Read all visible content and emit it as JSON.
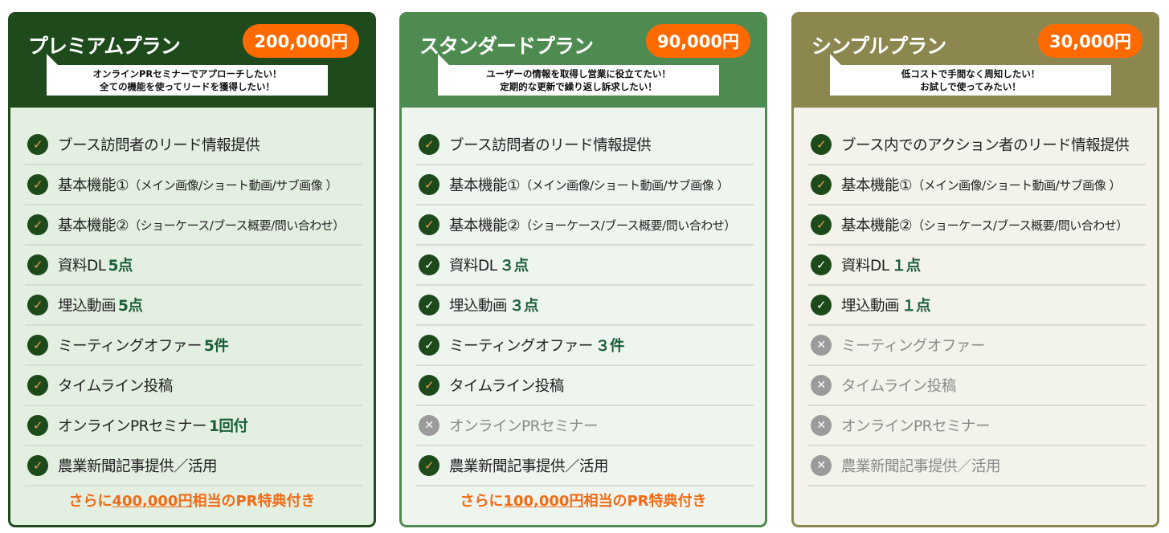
{
  "plans": [
    {
      "title": "プレミアムプラン",
      "price": "200,000円",
      "bubble_line1": "オンラインPRセミナーでアプローチしたい！",
      "bubble_line2": "全ての機能を使ってリードを獲得したい！",
      "header_color": "#1f4a1c",
      "features": [
        {
          "text": "ブース訪問者のリード情報提供",
          "note": "",
          "emph": "",
          "icon": "orange"
        },
        {
          "text": "基本機能①",
          "note": "（メイン画像/ショート動画/サブ画像 ）",
          "emph": "",
          "icon": "orange"
        },
        {
          "text": "基本機能②",
          "note": "（ショーケース/ブース概要/問い合わせ）",
          "emph": "",
          "icon": "orange"
        },
        {
          "text": "資料DL",
          "note": "",
          "emph": "5点",
          "icon": "orange"
        },
        {
          "text": "埋込動画",
          "note": "",
          "emph": "5点",
          "icon": "orange"
        },
        {
          "text": "ミーティングオファー",
          "note": "",
          "emph": "5件",
          "icon": "orange"
        },
        {
          "text": "タイムライン投稿",
          "note": "",
          "emph": "",
          "icon": "orange"
        },
        {
          "text": "オンラインPRセミナー",
          "note": "",
          "emph": "1回付",
          "icon": "orange"
        },
        {
          "text": "農業新聞記事提供／活用",
          "note": "",
          "emph": "",
          "icon": "orange"
        }
      ],
      "footer_pre": "さらに",
      "footer_amount": "400,000円",
      "footer_post": "相当のPR特典付き"
    },
    {
      "title": "スタンダードプラン",
      "price": "90,000円",
      "bubble_line1": "ユーザーの情報を取得し営業に役立てたい！",
      "bubble_line2": "定期的な更新で繰り返し訴求したい！",
      "header_color": "#4e8b50",
      "features": [
        {
          "text": "ブース訪問者のリード情報提供",
          "note": "",
          "emph": "",
          "icon": "orange"
        },
        {
          "text": "基本機能①",
          "note": "（メイン画像/ショート動画/サブ画像 ）",
          "emph": "",
          "icon": "orange"
        },
        {
          "text": "基本機能②",
          "note": "（ショーケース/ブース概要/問い合わせ）",
          "emph": "",
          "icon": "orange"
        },
        {
          "text": "資料DL",
          "note": "",
          "emph": "３点",
          "icon": "white"
        },
        {
          "text": "埋込動画",
          "note": "",
          "emph": "３点",
          "icon": "white"
        },
        {
          "text": "ミーティングオファー",
          "note": "",
          "emph": "３件",
          "icon": "white"
        },
        {
          "text": "タイムライン投稿",
          "note": "",
          "emph": "",
          "icon": "orange"
        },
        {
          "text": "オンラインPRセミナー",
          "note": "",
          "emph": "",
          "icon": "off"
        },
        {
          "text": "農業新聞記事提供／活用",
          "note": "",
          "emph": "",
          "icon": "orange"
        }
      ],
      "footer_pre": "さらに",
      "footer_amount": "100,000円",
      "footer_post": "相当のPR特典付き"
    },
    {
      "title": "シンプルプラン",
      "price": "30,000円",
      "bubble_line1": "低コストで手間なく周知したい！",
      "bubble_line2": "お試しで使ってみたい！",
      "header_color": "#8b874f",
      "features": [
        {
          "text": "ブース内でのアクション者のリード情報提供",
          "note": "",
          "emph": "",
          "icon": "orange"
        },
        {
          "text": "基本機能①",
          "note": "（メイン画像/ショート動画/サブ画像 ）",
          "emph": "",
          "icon": "orange"
        },
        {
          "text": "基本機能②",
          "note": "（ショーケース/ブース概要/問い合わせ）",
          "emph": "",
          "icon": "orange"
        },
        {
          "text": "資料DL",
          "note": "",
          "emph": "１点",
          "icon": "white"
        },
        {
          "text": "埋込動画",
          "note": "",
          "emph": "１点",
          "icon": "white"
        },
        {
          "text": "ミーティングオファー",
          "note": "",
          "emph": "",
          "icon": "off"
        },
        {
          "text": "タイムライン投稿",
          "note": "",
          "emph": "",
          "icon": "off"
        },
        {
          "text": "オンラインPRセミナー",
          "note": "",
          "emph": "",
          "icon": "off"
        },
        {
          "text": "農業新聞記事提供／活用",
          "note": "",
          "emph": "",
          "icon": "off"
        }
      ],
      "footer_pre": "",
      "footer_amount": "",
      "footer_post": ""
    }
  ],
  "colors": {
    "price_badge": "#ff6a00",
    "footer_text": "#f26a14",
    "emphasis": "#1b5e3a",
    "icon_bg": "#1d4a1a",
    "icon_off": "#9b9b9b"
  }
}
